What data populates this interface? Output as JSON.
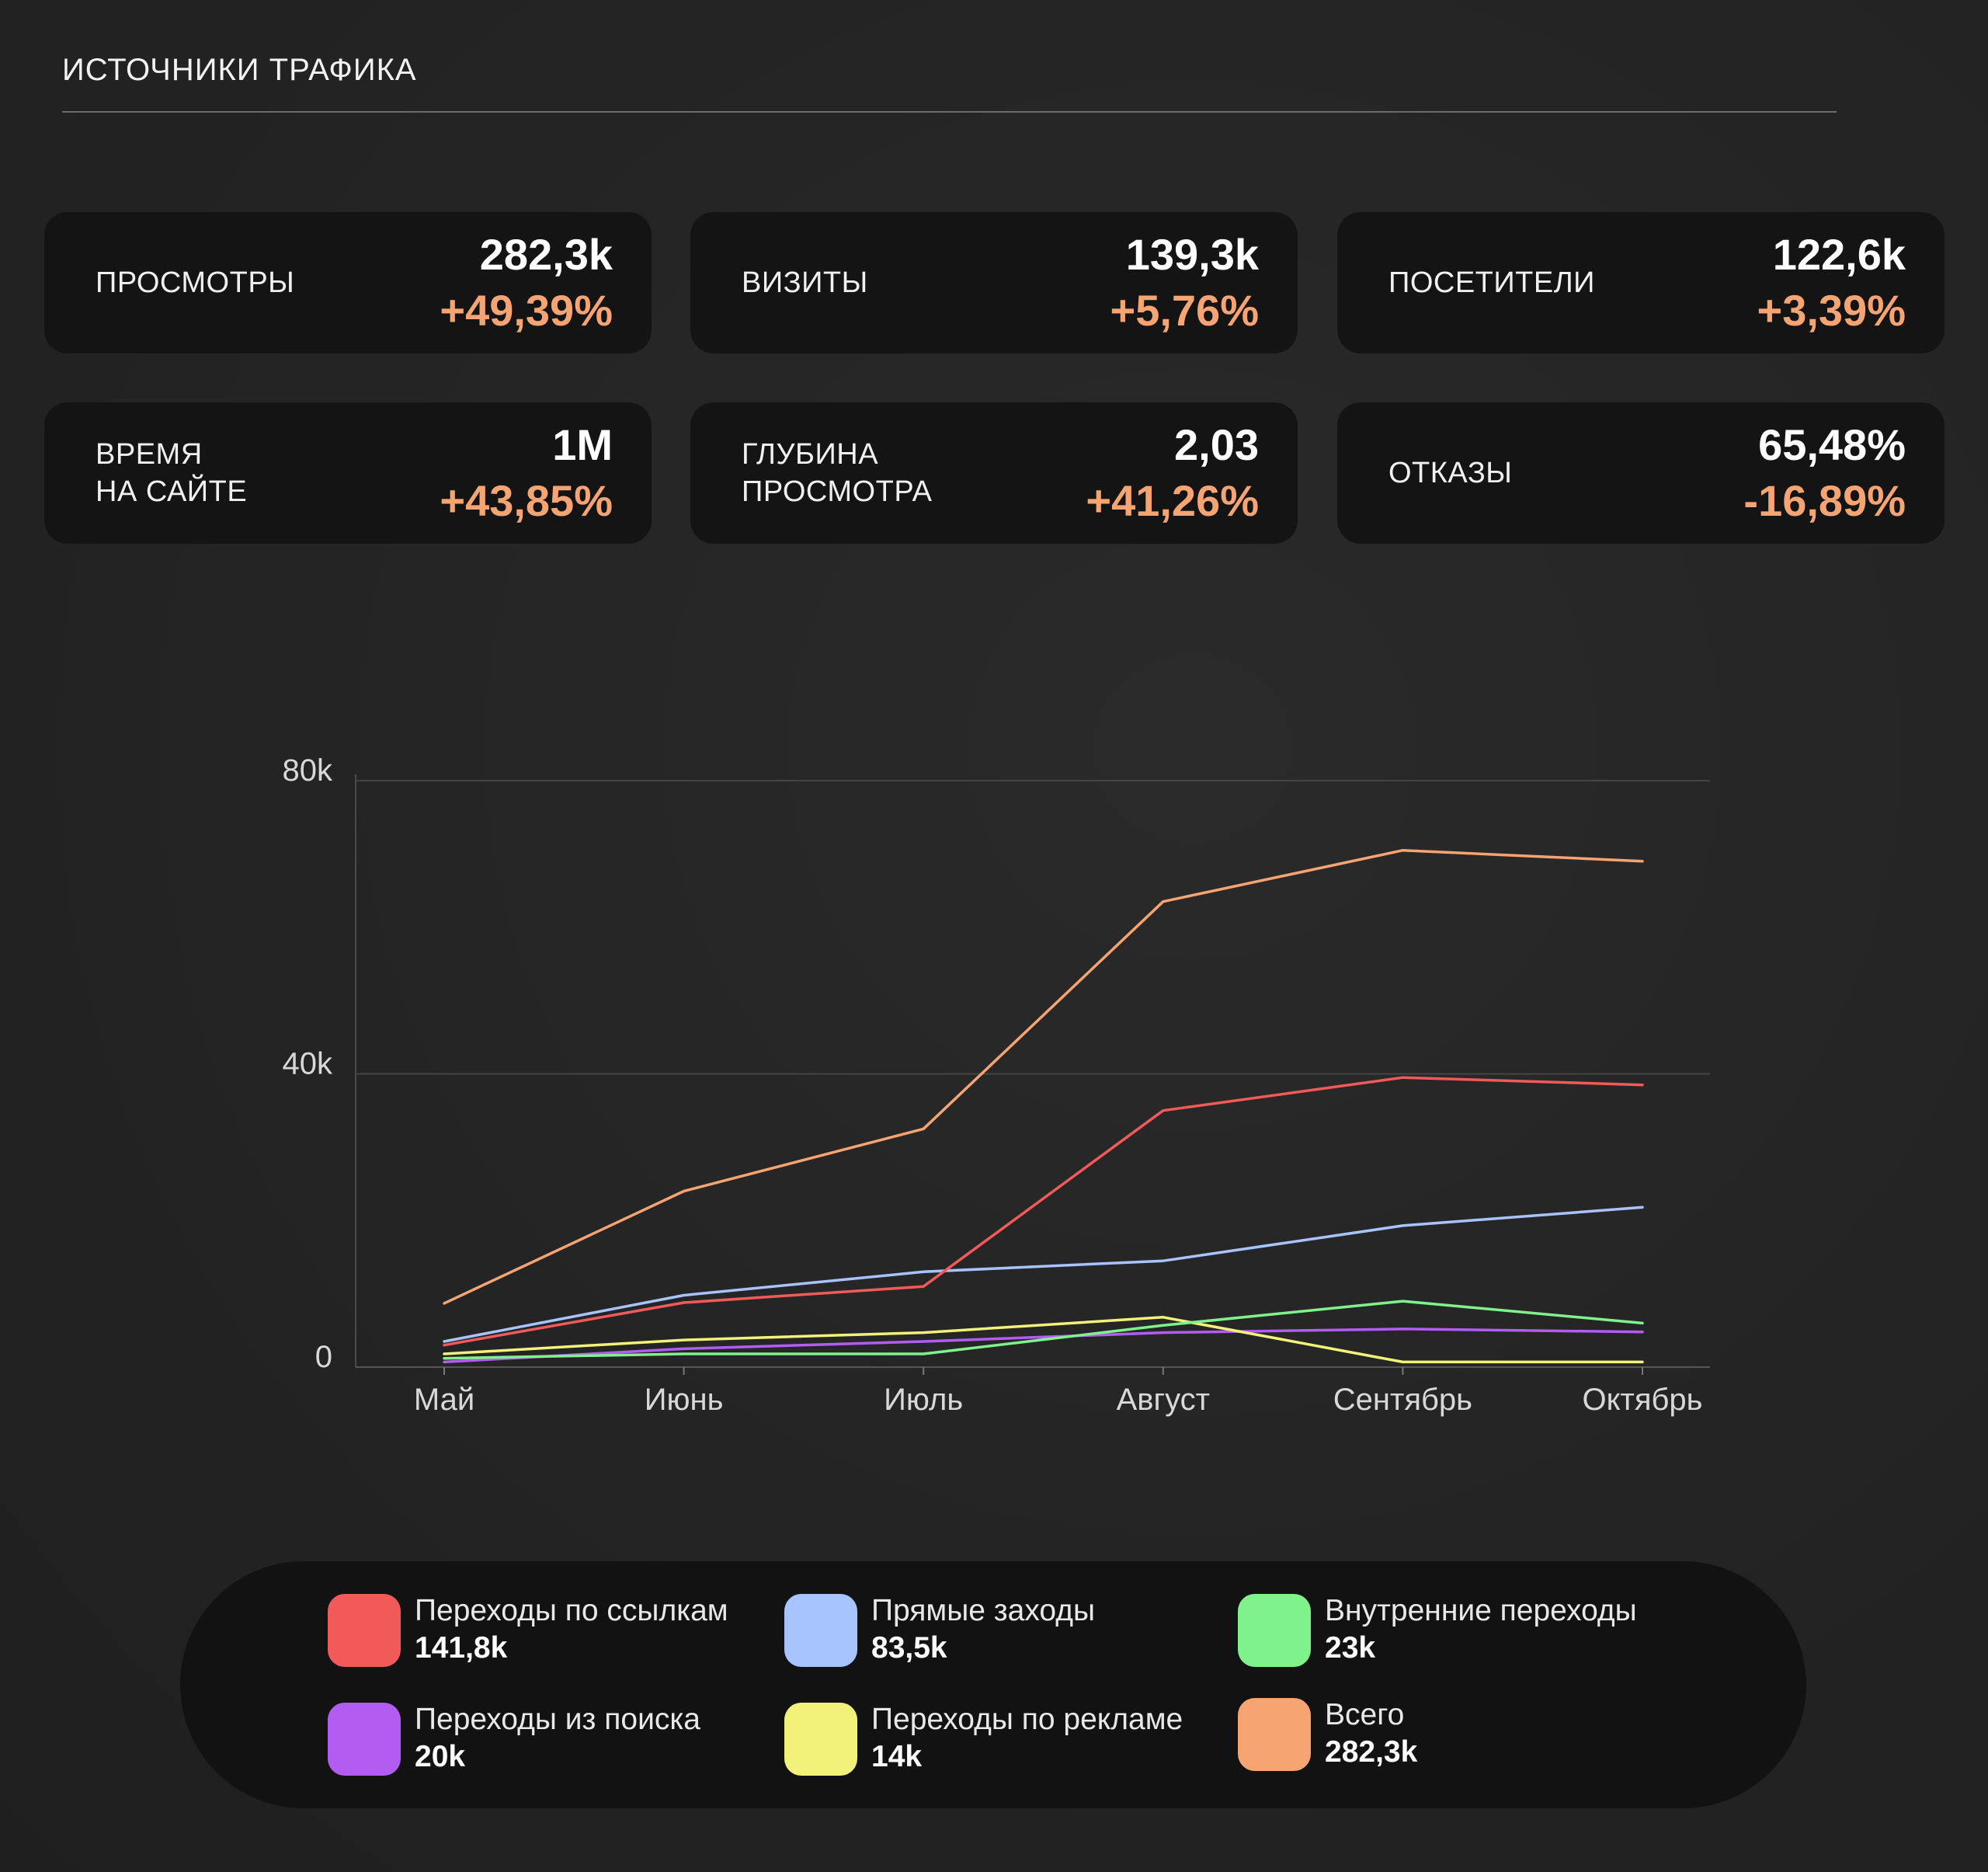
{
  "header": {
    "title": "ИСТОЧНИКИ ТРАФИКА"
  },
  "kpis": [
    {
      "label": "ПРОСМОТРЫ",
      "value": "282,3k",
      "change": "+49,39%"
    },
    {
      "label": "ВИЗИТЫ",
      "value": "139,3k",
      "change": "+5,76%"
    },
    {
      "label": "ПОСЕТИТЕЛИ",
      "value": "122,6k",
      "change": "+3,39%"
    },
    {
      "label": "ВРЕМЯ\nНА САЙТЕ",
      "value": "1M",
      "change": "+43,85%"
    },
    {
      "label": "ГЛУБИНА\nПРОСМОТРА",
      "value": "2,03",
      "change": "+41,26%"
    },
    {
      "label": "ОТКАЗЫ",
      "value": "65,48%",
      "change": "-16,89%"
    }
  ],
  "chart_data": {
    "type": "line",
    "title": "",
    "xlabel": "",
    "ylabel": "",
    "categories": [
      "Май",
      "Июнь",
      "Июль",
      "Август",
      "Сентябрь",
      "Октябрь"
    ],
    "y_ticks": [
      0,
      40000,
      80000
    ],
    "y_tick_labels": [
      "0",
      "40k",
      "80k"
    ],
    "ylim": [
      0,
      80000
    ],
    "grid": true,
    "series": [
      {
        "name": "Всего",
        "color": "#f7a473",
        "values": [
          8700,
          24000,
          32500,
          63500,
          70500,
          69000
        ]
      },
      {
        "name": "Переходы по ссылкам",
        "color": "#f25a5a",
        "values": [
          3000,
          8800,
          11000,
          35000,
          39500,
          38500
        ]
      },
      {
        "name": "Прямые заходы",
        "color": "#a8c4ff",
        "values": [
          3500,
          9800,
          13000,
          14500,
          19300,
          21800
        ]
      },
      {
        "name": "Внутренние переходы",
        "color": "#7ff28c",
        "values": [
          1200,
          1800,
          1800,
          5700,
          9000,
          6000
        ]
      },
      {
        "name": "Переходы по рекламе",
        "color": "#f2f27a",
        "values": [
          1800,
          3700,
          4700,
          6800,
          700,
          700
        ]
      },
      {
        "name": "Переходы из поиска",
        "color": "#b35cf2",
        "values": [
          700,
          2500,
          3500,
          4700,
          5200,
          4800
        ]
      }
    ]
  },
  "legend": {
    "items": [
      {
        "name": "Переходы по ссылкам",
        "value": "141,8k",
        "color": "#f25a5a"
      },
      {
        "name": "Прямые заходы",
        "value": "83,5k",
        "color": "#a8c4ff"
      },
      {
        "name": "Внутренние переходы",
        "value": "23k",
        "color": "#7ff28c"
      },
      {
        "name": "Переходы из поиска",
        "value": "20k",
        "color": "#b35cf2"
      },
      {
        "name": "Переходы по рекламе",
        "value": "14k",
        "color": "#f2f27a"
      },
      {
        "name": "Всего",
        "value": "282,3k",
        "color": "#f7a473"
      }
    ]
  }
}
